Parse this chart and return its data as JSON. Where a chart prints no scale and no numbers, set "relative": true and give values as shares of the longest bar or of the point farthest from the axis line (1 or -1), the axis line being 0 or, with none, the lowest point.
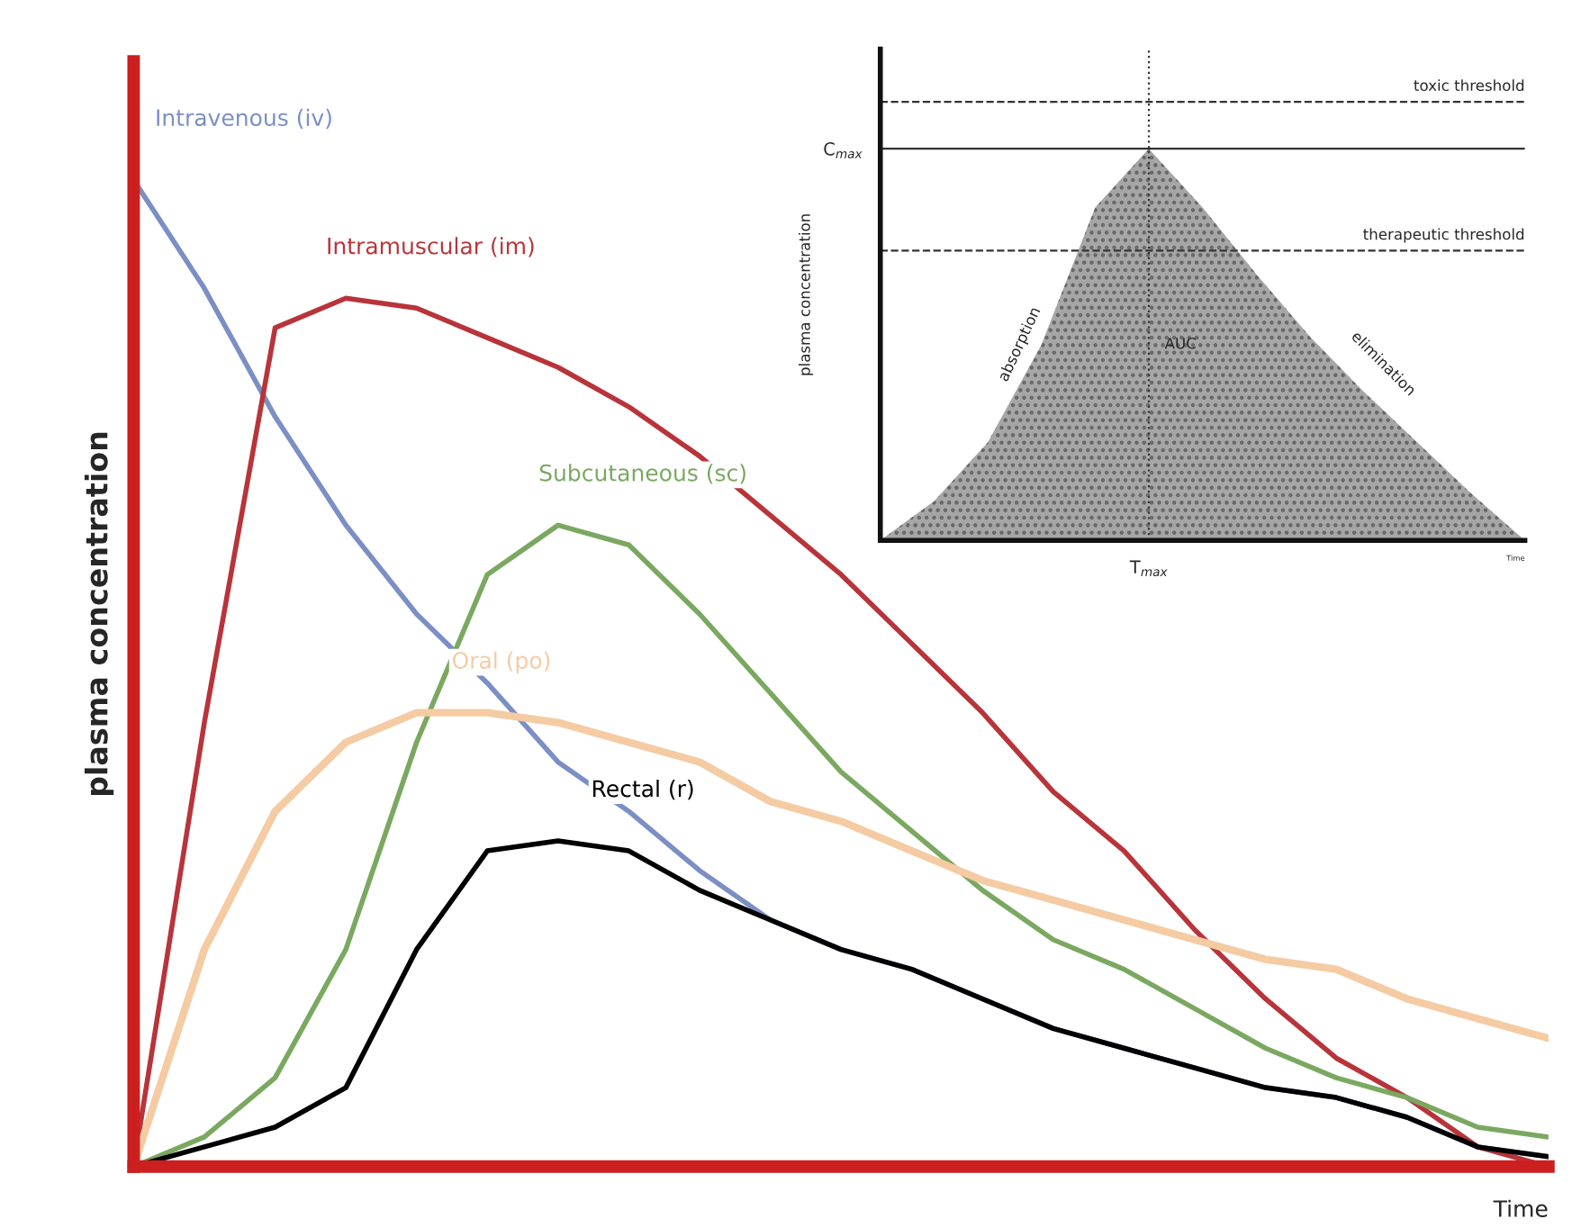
{
  "chart_data": [
    {
      "type": "line",
      "relative": true,
      "xlabel": "Time",
      "ylabel": "plasma concentration",
      "grid": false,
      "categories": [
        null,
        null,
        null,
        null,
        null,
        null,
        null,
        null,
        null,
        null,
        null,
        null,
        null,
        null,
        null,
        null,
        null,
        null,
        null,
        null,
        null
      ],
      "series": [
        {
          "name": "Intravenous (iv)",
          "color": "#7b8fc4",
          "values": [
            1.0,
            0.89,
            0.76,
            0.65,
            0.56,
            0.49,
            0.41,
            0.36,
            0.3,
            0.25,
            0.22,
            0.2,
            0.17,
            0.14,
            0.12,
            0.1,
            0.08,
            0.07,
            0.05,
            0.02,
            0.01
          ]
        },
        {
          "name": "Intramuscular (im)",
          "color": "#b8343a",
          "values": [
            0,
            0.45,
            0.85,
            0.88,
            0.87,
            0.84,
            0.81,
            0.77,
            0.72,
            0.66,
            0.6,
            0.53,
            0.46,
            0.38,
            0.32,
            0.24,
            0.17,
            0.11,
            0.07,
            0.02,
            0
          ]
        },
        {
          "name": "Subcutaneous (sc)",
          "color": "#7aa860",
          "values": [
            0,
            0.03,
            0.09,
            0.22,
            0.43,
            0.6,
            0.65,
            0.63,
            0.56,
            0.48,
            0.4,
            0.34,
            0.28,
            0.23,
            0.2,
            0.16,
            0.12,
            0.09,
            0.07,
            0.04,
            0.03
          ]
        },
        {
          "name": "Oral (po)",
          "color": "#f5cba3",
          "values": [
            0,
            0.22,
            0.36,
            0.43,
            0.46,
            0.46,
            0.45,
            0.43,
            0.41,
            0.37,
            0.35,
            0.32,
            0.29,
            0.27,
            0.25,
            0.23,
            0.21,
            0.2,
            0.17,
            0.15,
            0.13
          ]
        },
        {
          "name": "Rectal (r)",
          "color": "#000000",
          "values": [
            0,
            0.02,
            0.04,
            0.08,
            0.22,
            0.32,
            0.33,
            0.32,
            0.28,
            0.25,
            0.22,
            0.2,
            0.17,
            0.14,
            0.12,
            0.1,
            0.08,
            0.07,
            0.05,
            0.02,
            0.01
          ]
        }
      ]
    },
    {
      "type": "area",
      "relative": true,
      "xlabel": "Time",
      "ylabel": "plasma concentration",
      "grid": false,
      "categories": [
        null,
        null,
        null,
        null,
        null,
        null,
        null,
        null,
        null,
        null,
        null,
        null,
        null
      ],
      "series": [
        {
          "color": "#a6a6a6",
          "values": [
            0,
            0.1,
            0.25,
            0.5,
            0.85,
            1.0,
            0.85,
            0.68,
            0.52,
            0.38,
            0.25,
            0.12,
            0
          ]
        }
      ],
      "ref_lines": [
        {
          "axis": "y",
          "value": 1.12,
          "label": "toxic threshold",
          "line_style": "dashed"
        },
        {
          "axis": "y",
          "value": 0.74,
          "label": "therapeutic threshold",
          "line_style": "dashed"
        },
        {
          "axis": "y",
          "value": 1.0,
          "label": "C$_{max}$",
          "line_style": "solid"
        }
      ],
      "annotations": [
        "AUC",
        "absorption",
        "elimination",
        "T$_{max}$"
      ]
    }
  ]
}
